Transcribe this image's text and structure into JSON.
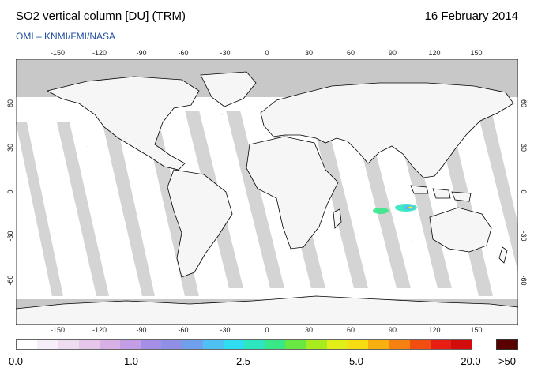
{
  "header": {
    "title": "SO2 vertical column [DU] (TRM)",
    "date": "16 February 2014",
    "credit": "OMI  –  KNMI/FMI/NASA"
  },
  "map": {
    "projection": "equirectangular",
    "lon_range": [
      -180,
      180
    ],
    "lat_range": [
      -90,
      90
    ],
    "lon_ticks": [
      "-150",
      "-120",
      "-90",
      "-60",
      "-30",
      "0",
      "30",
      "60",
      "90",
      "120",
      "150"
    ],
    "lat_ticks": [
      "60",
      "30",
      "0",
      "-30",
      "-60"
    ],
    "colors": {
      "no_data": "#c8c8c8",
      "swath_gap": "#d4d4d4",
      "ocean": "#ffffff",
      "coastline": "#000000",
      "over_max": "#5a0000"
    },
    "so2_plume_region": "Indian Ocean, east of Madagascar / Southeast Indian Ocean around 90E-105E, 10S-20S"
  },
  "colorbar": {
    "labels": [
      "0.0",
      "1.0",
      "2.5",
      "5.0",
      "20.0",
      ">50"
    ],
    "colors": [
      "#ffffff",
      "#f6eef8",
      "#eedcf0",
      "#e6c6ea",
      "#d8b0e6",
      "#c39ee6",
      "#a48ee6",
      "#8f8fe8",
      "#6fa0ee",
      "#4ec0f2",
      "#30dcef",
      "#2ce6c0",
      "#38e888",
      "#6ae842",
      "#a8ec20",
      "#e2ee18",
      "#f6dc10",
      "#f8b010",
      "#f68010",
      "#f24e12",
      "#e81e14",
      "#d20c0c"
    ],
    "over_color": "#5a0000"
  }
}
